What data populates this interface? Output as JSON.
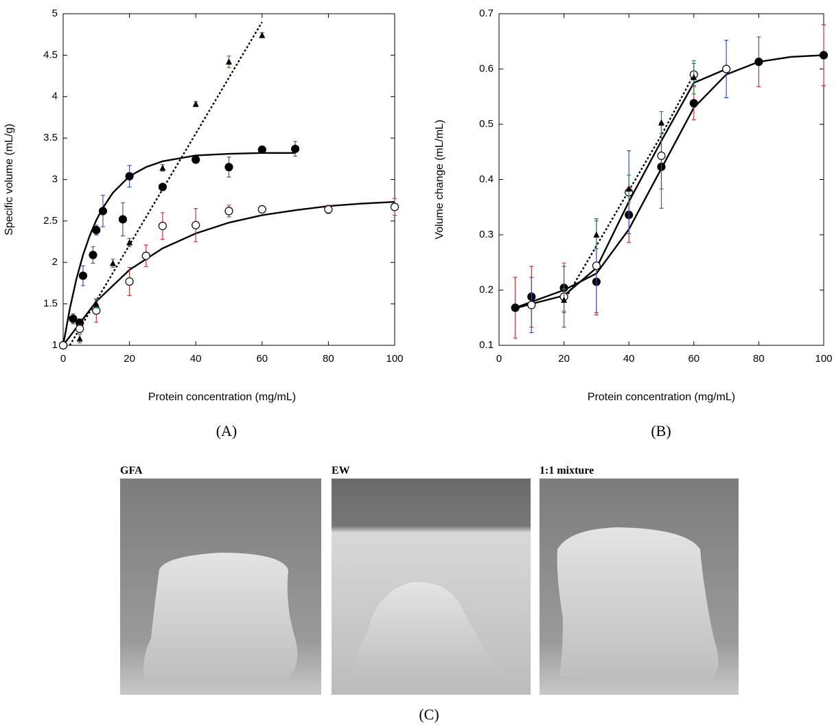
{
  "chart_data": [
    {
      "type": "scatter",
      "panel_label": "(A)",
      "x_label": "Protein concentration   (mg/mL)",
      "y_label": "Specific volume   (mL/g)",
      "xlim": [
        0,
        100
      ],
      "xticks": [
        0,
        20,
        40,
        60,
        80,
        100
      ],
      "ylim": [
        1,
        5
      ],
      "yticks": [
        1,
        1.5,
        2,
        2.5,
        3,
        3.5,
        4,
        4.5,
        5
      ],
      "series": [
        {
          "marker": "filled-circle",
          "color": "#000000",
          "error_color": "#3a54b4",
          "x": [
            0,
            3,
            5,
            6,
            9,
            10,
            12,
            18,
            20,
            30,
            40,
            50,
            60,
            70
          ],
          "values": [
            1,
            1.32,
            1.27,
            1.84,
            2.09,
            2.39,
            2.62,
            2.52,
            3.04,
            2.91,
            3.24,
            3.15,
            3.36,
            3.37
          ],
          "errors": [
            0.03,
            0.06,
            0.05,
            0.12,
            0.1,
            0.06,
            0.19,
            0.2,
            0.13,
            0.04,
            0.03,
            0.12,
            0.03,
            0.09
          ]
        },
        {
          "marker": "open-circle",
          "color": "#000000",
          "error_color": "#d03030",
          "x": [
            0,
            5,
            10,
            20,
            25,
            30,
            40,
            50,
            60,
            80,
            100
          ],
          "values": [
            1,
            1.2,
            1.42,
            1.77,
            2.08,
            2.44,
            2.45,
            2.62,
            2.64,
            2.64,
            2.67
          ],
          "errors": [
            0.03,
            0.05,
            0.14,
            0.17,
            0.13,
            0.16,
            0.2,
            0.07,
            0.03,
            0.05,
            0.1
          ]
        },
        {
          "marker": "triangle",
          "color": "#000000",
          "error_color": "#2a8a3a",
          "x": [
            5,
            10,
            15,
            20,
            30,
            40,
            50,
            60
          ],
          "values": [
            1.08,
            1.5,
            1.99,
            2.24,
            3.14,
            3.91,
            4.42,
            4.74
          ],
          "errors": [
            0.05,
            0.05,
            0.05,
            0.05,
            0.04,
            0.03,
            0.07,
            0.03
          ]
        }
      ],
      "fits": [
        {
          "style": "solid",
          "x": [
            0,
            2,
            4,
            6,
            8,
            10,
            12,
            15,
            20,
            25,
            30,
            40,
            50,
            60,
            70
          ],
          "values": [
            1,
            1.44,
            1.8,
            2.09,
            2.32,
            2.51,
            2.66,
            2.84,
            3.04,
            3.15,
            3.22,
            3.29,
            3.31,
            3.32,
            3.32
          ]
        },
        {
          "style": "solid",
          "x": [
            0,
            10,
            20,
            30,
            40,
            50,
            60,
            70,
            80,
            90,
            100
          ],
          "values": [
            1,
            1.53,
            1.91,
            2.17,
            2.35,
            2.48,
            2.57,
            2.63,
            2.68,
            2.71,
            2.73
          ]
        },
        {
          "style": "dotted",
          "x": [
            2,
            60
          ],
          "values": [
            1,
            4.9
          ]
        }
      ]
    },
    {
      "type": "scatter",
      "panel_label": "(B)",
      "x_label": "Protein concentration   (mg/mL)",
      "y_label": "Volume change   (mL/mL)",
      "xlim": [
        0,
        100
      ],
      "xticks": [
        0,
        20,
        40,
        60,
        80,
        100
      ],
      "ylim": [
        0.1,
        0.7
      ],
      "yticks": [
        0.1,
        0.2,
        0.3,
        0.4,
        0.5,
        0.6,
        0.7
      ],
      "series": [
        {
          "marker": "filled-circle",
          "color": "#000000",
          "error_color": "#d03030",
          "x": [
            5,
            10,
            20,
            30,
            40,
            50,
            60,
            80,
            100
          ],
          "values": [
            0.168,
            0.188,
            0.204,
            0.215,
            0.336,
            0.423,
            0.538,
            0.613,
            0.625
          ],
          "errors": [
            0.055,
            0.055,
            0.045,
            0.06,
            0.05,
            0.075,
            0.03,
            0.045,
            0.055
          ]
        },
        {
          "marker": "open-circle",
          "color": "#000000",
          "error_color": "#3a54b4",
          "x": [
            10,
            20,
            30,
            40,
            50,
            60,
            70
          ],
          "values": [
            0.173,
            0.188,
            0.244,
            0.377,
            0.443,
            0.59,
            0.6
          ],
          "errors": [
            0.05,
            0.055,
            0.085,
            0.075,
            0.06,
            0.02,
            0.052
          ]
        },
        {
          "marker": "triangle",
          "color": "#000000",
          "error_color": "#2a8a3a",
          "x": [
            20,
            30,
            40,
            50,
            60
          ],
          "values": [
            0.182,
            0.3,
            0.383,
            0.503,
            0.585
          ],
          "errors": [
            0.02,
            0.025,
            0.025,
            0.02,
            0.03
          ]
        }
      ],
      "fits": [
        {
          "style": "solid",
          "x": [
            5,
            20,
            30,
            40,
            50,
            60,
            70,
            80,
            90,
            100
          ],
          "values": [
            0.168,
            0.2,
            0.23,
            0.31,
            0.42,
            0.53,
            0.59,
            0.613,
            0.622,
            0.625
          ]
        },
        {
          "style": "solid",
          "x": [
            5,
            10,
            20,
            30,
            40,
            50,
            60,
            70
          ],
          "values": [
            0.167,
            0.175,
            0.19,
            0.24,
            0.36,
            0.47,
            0.575,
            0.6
          ]
        },
        {
          "style": "dotted",
          "x": [
            20,
            30,
            40,
            50,
            60
          ],
          "values": [
            0.18,
            0.28,
            0.38,
            0.48,
            0.59
          ]
        }
      ]
    }
  ],
  "photos": {
    "panel_label": "(C)",
    "labels": [
      "GFA",
      "EW",
      "1:1 mixture"
    ]
  }
}
